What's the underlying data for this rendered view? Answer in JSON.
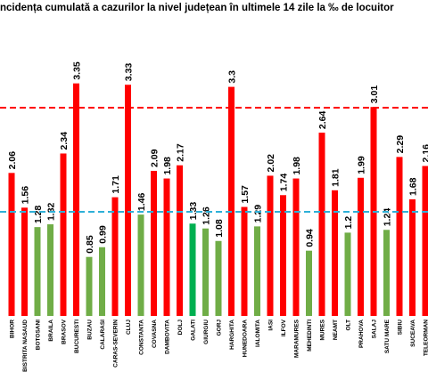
{
  "chart_data": {
    "type": "bar",
    "title": "ncidența cumulată a cazurilor la nivel județean în ultimele 14 zile la ‰ de locuitor",
    "categories": [
      "BIHOR",
      "BISTRITA NASAUD",
      "BOTOSANI",
      "BRAILA",
      "BRASOV",
      "BUCURESTI",
      "BUZAU",
      "CALARASI",
      "CARAS-SEVERIN",
      "CLUJ",
      "CONSTANTA",
      "COVASNA",
      "DAMBOVITA",
      "DOLJ",
      "GALATI",
      "GIURGIU",
      "GORJ",
      "HARGHITA",
      "HUNEDOARA",
      "IALOMITA",
      "IASI",
      "ILFOV",
      "MARAMURES",
      "MEHEDINTI",
      "MURES",
      "NEAMT",
      "OLT",
      "PRAHOVA",
      "SALAJ",
      "SATU MARE",
      "SIBIU",
      "SUCEAVA",
      "TELEORMAN"
    ],
    "values": [
      2.06,
      1.56,
      1.28,
      1.32,
      2.34,
      3.35,
      0.85,
      0.99,
      1.71,
      3.33,
      1.46,
      2.09,
      1.98,
      2.17,
      1.33,
      1.26,
      1.08,
      3.3,
      1.57,
      1.29,
      2.02,
      1.74,
      1.98,
      0.94,
      2.64,
      1.81,
      1.2,
      1.99,
      3.01,
      1.24,
      2.29,
      1.68,
      2.16
    ],
    "colors": [
      "#ff0000",
      "#ff0000",
      "#70ad47",
      "#70ad47",
      "#ff0000",
      "#ff0000",
      "#70ad47",
      "#70ad47",
      "#ff0000",
      "#ff0000",
      "#70ad47",
      "#ff0000",
      "#ff0000",
      "#ff0000",
      "#00b050",
      "#70ad47",
      "#70ad47",
      "#ff0000",
      "#ff0000",
      "#70ad47",
      "#ff0000",
      "#ff0000",
      "#ff0000",
      "#70ad47",
      "#ff0000",
      "#ff0000",
      "#70ad47",
      "#ff0000",
      "#ff0000",
      "#70ad47",
      "#ff0000",
      "#ff0000",
      "#ff0000"
    ],
    "ylim": [
      0,
      4.5
    ],
    "reference_lines": [
      {
        "value": 3,
        "color": "#ff0000"
      },
      {
        "value": 1.5,
        "color": "#2eb0d8"
      }
    ]
  }
}
